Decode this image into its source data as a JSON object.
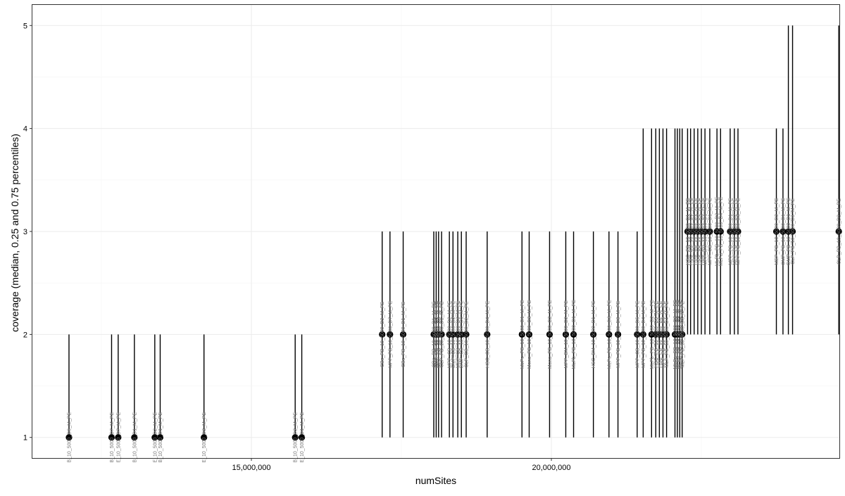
{
  "chart_data": {
    "type": "scatter",
    "title": "",
    "xlabel": "numSites",
    "ylabel": "coverage (median, 0.25 and 0.75 percentiles)",
    "xlim": [
      11350000,
      24800000
    ],
    "ylim": [
      0.8,
      5.2
    ],
    "x_ticks": [
      15000000,
      20000000
    ],
    "x_tick_labels": [
      "15,000,000",
      "20,000,000"
    ],
    "y_ticks": [
      1,
      2,
      3,
      4,
      5
    ],
    "y_tick_labels": [
      "1",
      "2",
      "3",
      "4",
      "5"
    ],
    "grid": true,
    "legend": "none",
    "colors": {
      "point": "#000000",
      "errorbar": "#000000",
      "label": "#777777",
      "grid": "#ebebeb",
      "frame": "#333333"
    },
    "points": [
      {
        "x": 11960000,
        "median": 1,
        "q25": 1,
        "q75": 2,
        "label": "B_10_5000_D9_M_PE"
      },
      {
        "x": 12670000,
        "median": 1,
        "q25": 1,
        "q75": 2,
        "label": "B_10_5000_D7_M_PE"
      },
      {
        "x": 12780000,
        "median": 1,
        "q25": 1,
        "q75": 2,
        "label": "E_10_5000_D7_M_PE"
      },
      {
        "x": 13050000,
        "median": 1,
        "q25": 1,
        "q75": 2,
        "label": "B_10_5000_D1_M_PE"
      },
      {
        "x": 13390000,
        "median": 1,
        "q25": 1,
        "q75": 2,
        "label": "E_10_5000_D2_M_PE"
      },
      {
        "x": 13480000,
        "median": 1,
        "q25": 1,
        "q75": 2,
        "label": "B_10_5000_D1_M_PE"
      },
      {
        "x": 14210000,
        "median": 1,
        "q25": 1,
        "q75": 2,
        "label": "E_10_5000_D3_M_PE"
      },
      {
        "x": 15730000,
        "median": 1,
        "q25": 1,
        "q75": 2,
        "label": "B_10_5000_D2_M_PE"
      },
      {
        "x": 15840000,
        "median": 1,
        "q25": 1,
        "q75": 2,
        "label": "E_10_5000_D1_M_PE"
      },
      {
        "x": 17180000,
        "median": 2,
        "q25": 1,
        "q75": 3,
        "label": "CBs_PB_10_5000_D2_M_PE"
      },
      {
        "x": 17310000,
        "median": 2,
        "q25": 1,
        "q75": 3,
        "label": "MPP_PB_10_5000_D7_M_PE"
      },
      {
        "x": 17530000,
        "median": 2,
        "q25": 1,
        "q75": 3,
        "label": "CBs_PB_10_5000_D1_M_PE"
      },
      {
        "x": 18040000,
        "median": 2,
        "q25": 1,
        "q75": 3,
        "label": "CDs_PB_10_5000_D1_M_PE"
      },
      {
        "x": 18080000,
        "median": 2,
        "q25": 1,
        "q75": 3,
        "label": "CMP_PB_10_5000_D2_M_PE"
      },
      {
        "x": 18120000,
        "median": 2,
        "q25": 1,
        "q75": 3,
        "label": "MEP_PB_10_5000_D3_M_PE"
      },
      {
        "x": 18170000,
        "median": 2,
        "q25": 1,
        "q75": 3,
        "label": "CLP_PB_10_5000_D1_M_PE"
      },
      {
        "x": 18300000,
        "median": 2,
        "q25": 1,
        "q75": 3,
        "label": "MPP_CB_10_5000_D2_M_PE"
      },
      {
        "x": 18360000,
        "median": 2,
        "q25": 1,
        "q75": 3,
        "label": "CMP_CB_10_5000_D2_M_PE"
      },
      {
        "x": 18440000,
        "median": 2,
        "q25": 1,
        "q75": 3,
        "label": "MEP_CB_10_5000_D3_M_PE"
      },
      {
        "x": 18500000,
        "median": 2,
        "q25": 1,
        "q75": 3,
        "label": "GMP_CB_10_5000_D1_M_PE"
      },
      {
        "x": 18580000,
        "median": 2,
        "q25": 1,
        "q75": 3,
        "label": "CLP_CB_10_5000_D2_M_PE"
      },
      {
        "x": 18930000,
        "median": 2,
        "q25": 1,
        "q75": 3,
        "label": "HSC_CB_10_5000_D4_M_PE"
      },
      {
        "x": 19510000,
        "median": 2,
        "q25": 1,
        "q75": 3,
        "label": "MLPs_PB_10_5000_D1_M_PE"
      },
      {
        "x": 19630000,
        "median": 2,
        "q25": 1,
        "q75": 3,
        "label": "Mono_PB_10_5000_D3_M_PE"
      },
      {
        "x": 19970000,
        "median": 2,
        "q25": 1,
        "q75": 3,
        "label": "Mono_PB_10_5000_D2_M_PE"
      },
      {
        "x": 20240000,
        "median": 2,
        "q25": 1,
        "q75": 3,
        "label": "MPP_BM_10_5000_D2_M_PE"
      },
      {
        "x": 20370000,
        "median": 2,
        "q25": 1,
        "q75": 3,
        "label": "MLPb_PB_10_5000_D1_M_PE"
      },
      {
        "x": 20700000,
        "median": 2,
        "q25": 1,
        "q75": 3,
        "label": "HSC_BM_10_5000_D1_M_PE"
      },
      {
        "x": 20960000,
        "median": 2,
        "q25": 1,
        "q75": 3,
        "label": "MLPs_PB_10_5000_D3_M_PE"
      },
      {
        "x": 21110000,
        "median": 2,
        "q25": 1,
        "q75": 3,
        "label": "MPP_PB_10_5000_D8_M_PE"
      },
      {
        "x": 21430000,
        "median": 2,
        "q25": 1,
        "q75": 3,
        "label": "MPP_CB_10_5000_D5_M_PE"
      },
      {
        "x": 21530000,
        "median": 2,
        "q25": 1,
        "q75": 4,
        "label": "MPP_PB_10_5000_D4_M_PE"
      },
      {
        "x": 21670000,
        "median": 2,
        "q25": 1,
        "q75": 4,
        "label": "MLPb_PB_10_5000_D2_M_PE"
      },
      {
        "x": 21740000,
        "median": 2,
        "q25": 1,
        "q75": 4,
        "label": "HSC_PB_10_5000_D3_M_PE"
      },
      {
        "x": 21800000,
        "median": 2,
        "q25": 1,
        "q75": 4,
        "label": "HSC_PB_10_5000_D2_M_PE"
      },
      {
        "x": 21860000,
        "median": 2,
        "q25": 1,
        "q75": 4,
        "label": "MPP_PB_10_5000_D5_M_PE"
      },
      {
        "x": 21920000,
        "median": 2,
        "q25": 1,
        "q75": 4,
        "label": "MLP_PB_10_5000_D4_M_PE"
      },
      {
        "x": 22060000,
        "median": 2,
        "q25": 1,
        "q75": 4,
        "label": "MLPa_PB_10_5000_D3_M_PE"
      },
      {
        "x": 22100000,
        "median": 2,
        "q25": 1,
        "q75": 4,
        "label": "MLPa_PB_10_5000_D1_M_PE"
      },
      {
        "x": 22140000,
        "median": 2,
        "q25": 1,
        "q75": 4,
        "label": "MLPa_PB_10_5000_D2_M_PE"
      },
      {
        "x": 22180000,
        "median": 2,
        "q25": 1,
        "q75": 4,
        "label": "MLP_PB_10_5000_D3_M_PE"
      },
      {
        "x": 22270000,
        "median": 3,
        "q25": 2,
        "q75": 4,
        "label": "HSC_PB_10_5000_D1_M_PE"
      },
      {
        "x": 22320000,
        "median": 3,
        "q25": 2,
        "q75": 4,
        "label": "HSC_BM_10_5000_D2_M_PE"
      },
      {
        "x": 22380000,
        "median": 3,
        "q25": 2,
        "q75": 4,
        "label": "HSC_CB_10_5000_D1_M_PE"
      },
      {
        "x": 22440000,
        "median": 3,
        "q25": 2,
        "q75": 4,
        "label": "HSC_CB_10_5000_D2_M_PE"
      },
      {
        "x": 22500000,
        "median": 3,
        "q25": 2,
        "q75": 4,
        "label": "HSC_CB_10_5000_D3_M_PE"
      },
      {
        "x": 22560000,
        "median": 3,
        "q25": 2,
        "q75": 4,
        "label": "MPP_BM_10_5000_D1_M_PE"
      },
      {
        "x": 22640000,
        "median": 3,
        "q25": 2,
        "q75": 4,
        "label": "MPP_CB_10_5000_D1_M_PE"
      },
      {
        "x": 22760000,
        "median": 3,
        "q25": 2,
        "q75": 4,
        "label": "MLPb_PB_10_5000_D3_M_PE"
      },
      {
        "x": 22820000,
        "median": 3,
        "q25": 2,
        "q75": 4,
        "label": "MLPa_PB_10_5000_D4_M_PE"
      },
      {
        "x": 22980000,
        "median": 3,
        "q25": 2,
        "q75": 4,
        "label": "MPP_PB_10_5000_D1_M_PE"
      },
      {
        "x": 23050000,
        "median": 3,
        "q25": 2,
        "q75": 4,
        "label": "MPP_PB_10_5000_D2_M_PE"
      },
      {
        "x": 23110000,
        "median": 3,
        "q25": 2,
        "q75": 4,
        "label": "MPP_PB_10_5000_D3_M_PE"
      },
      {
        "x": 23750000,
        "median": 3,
        "q25": 2,
        "q75": 4,
        "label": "MEP_PB_10_5000_D2_M_PE"
      },
      {
        "x": 23860000,
        "median": 3,
        "q25": 2,
        "q75": 4,
        "label": "CMP_PB_10_5000_D1_M_PE"
      },
      {
        "x": 23950000,
        "median": 3,
        "q25": 2,
        "q75": 5,
        "label": "GMP_PB_10_5000_D1_M_PE"
      },
      {
        "x": 24020000,
        "median": 3,
        "q25": 2,
        "q75": 5,
        "label": "CLP_PB_10_5000_D3_M_PE"
      },
      {
        "x": 24790000,
        "median": 3,
        "q25": 2,
        "q75": 5,
        "label": "CLP_PB_10_5000_D2_M_PE"
      }
    ]
  }
}
